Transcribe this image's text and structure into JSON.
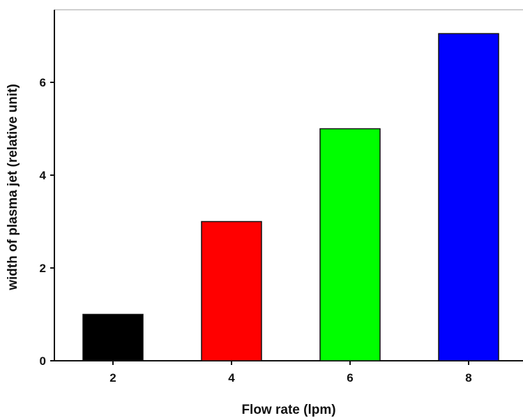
{
  "chart_data": {
    "type": "bar",
    "categories": [
      "2",
      "4",
      "6",
      "8"
    ],
    "values": [
      1,
      3,
      5,
      7.05
    ],
    "colors": [
      "#000000",
      "#ff0000",
      "#00ff00",
      "#0000ff"
    ],
    "xlabel": "Flow rate (lpm)",
    "ylabel": "width of plasma jet (relative unit)",
    "ylim": [
      0,
      7.5
    ],
    "yticks": [
      0,
      2,
      4,
      6
    ],
    "grid": false,
    "legend": "none"
  }
}
